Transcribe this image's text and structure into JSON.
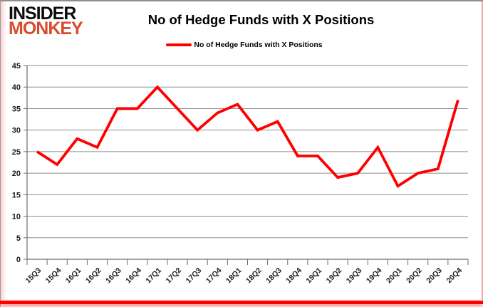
{
  "logo": {
    "top": "INSIDER",
    "bottom": "MONKEY"
  },
  "colors": {
    "line": "#ff0000",
    "logo_accent": "#d94b2e",
    "grid": "#8f8f8f",
    "axis": "#6b6b6b",
    "bottom_bar": "#ff0000"
  },
  "chart_data": {
    "type": "line",
    "title": "No of Hedge Funds with X Positions",
    "xlabel": "",
    "ylabel": "",
    "ylim": [
      0,
      45
    ],
    "ytick_step": 5,
    "grid": "horizontal",
    "legend_position": "top-center",
    "categories": [
      "15Q3",
      "15Q4",
      "16Q1",
      "16Q2",
      "16Q3",
      "16Q4",
      "17Q1",
      "17Q2",
      "17Q3",
      "17Q4",
      "18Q1",
      "18Q2",
      "18Q3",
      "18Q4",
      "19Q1",
      "19Q2",
      "19Q3",
      "19Q4",
      "20Q1",
      "20Q2",
      "20Q3",
      "20Q4"
    ],
    "series": [
      {
        "name": "No of Hedge Funds with X Positions",
        "color": "#ff0000",
        "values": [
          25,
          22,
          28,
          26,
          35,
          35,
          40,
          35,
          30,
          34,
          36,
          30,
          32,
          24,
          24,
          19,
          20,
          26,
          17,
          20,
          21,
          37
        ]
      }
    ]
  }
}
